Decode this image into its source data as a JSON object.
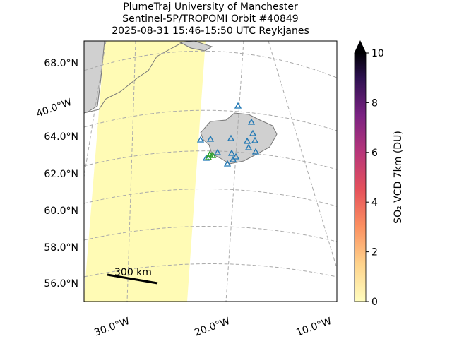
{
  "header": {
    "title_lines": [
      "PlumeTraj    University of Manchester",
      "Sentinel-5P/TROPOMI Orbit #40849",
      "2025-08-31   15:46-15:50 UTC   Reykjanes"
    ]
  },
  "map": {
    "lat_labels": [
      "68.0°N",
      "64.0°N",
      "62.0°N",
      "60.0°N",
      "58.0°N",
      "56.0°N"
    ],
    "lon_labels": [
      "40.0°W",
      "30.0°W",
      "20.0°W",
      "10.0°W"
    ],
    "scale_bar": "300 km"
  },
  "chart_data": {
    "type": "colorbar",
    "label": "SO₂ VCD 7km (DU)",
    "ylim": [
      0,
      10
    ],
    "yticks": [
      0,
      2,
      4,
      6,
      8,
      10
    ]
  }
}
